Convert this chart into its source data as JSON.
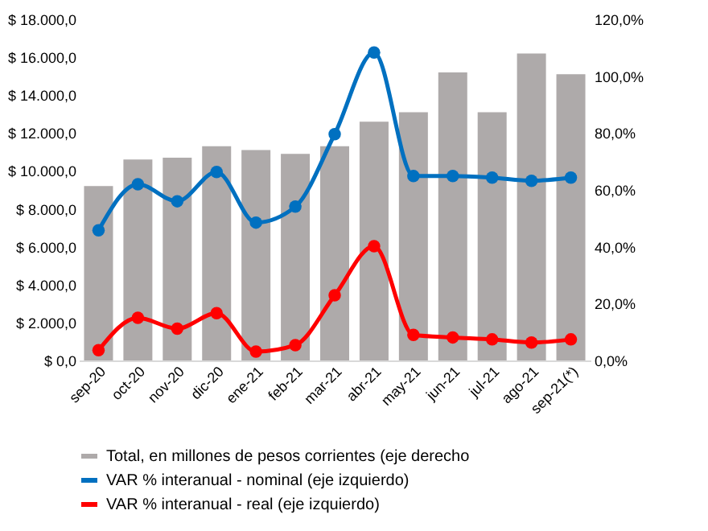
{
  "chart_data": {
    "type": "bar",
    "categories": [
      "sep-20",
      "oct-20",
      "nov-20",
      "dic-20",
      "ene-21",
      "feb-21",
      "mar-21",
      "abr-21",
      "may-21",
      "jun-21",
      "jul-21",
      "ago-21",
      "sep-21(*)"
    ],
    "series": [
      {
        "name": "Total, en millones de pesos corrientes (eje derecho",
        "type": "bar",
        "color": "#aeaaaa",
        "values": [
          9200,
          10600,
          10700,
          11300,
          11100,
          10900,
          11300,
          12600,
          13100,
          15200,
          13100,
          16200,
          15100
        ]
      },
      {
        "name": "VAR % interanual - nominal (eje izquierdo)",
        "type": "line",
        "axis": "y2",
        "color": "#0070c0",
        "values": [
          45.8,
          62.0,
          56.0,
          66.3,
          48.5,
          54.1,
          79.6,
          108.3,
          64.9,
          64.9,
          64.3,
          63.2,
          64.3
        ]
      },
      {
        "name": "VAR % interanual - real (eje izquierdo)",
        "type": "line",
        "axis": "y2",
        "color": "#ff0000",
        "values": [
          3.6,
          15.0,
          11.2,
          16.6,
          3.1,
          5.4,
          22.9,
          40.2,
          9.0,
          8.1,
          7.4,
          6.3,
          7.4
        ]
      }
    ],
    "ylim": [
      0,
      18000
    ],
    "yticks": [
      {
        "value": 0,
        "label": "$ 0,0"
      },
      {
        "value": 2000,
        "label": "$ 2.000,0"
      },
      {
        "value": 4000,
        "label": "$ 4.000,0"
      },
      {
        "value": 6000,
        "label": "$ 6.000,0"
      },
      {
        "value": 8000,
        "label": "$ 8.000,0"
      },
      {
        "value": 10000,
        "label": "$ 10.000,0"
      },
      {
        "value": 12000,
        "label": "$ 12.000,0"
      },
      {
        "value": 14000,
        "label": "$ 14.000,0"
      },
      {
        "value": 16000,
        "label": "$ 16.000,0"
      },
      {
        "value": 18000,
        "label": "$ 18.000,0"
      }
    ],
    "y2lim": [
      0,
      120
    ],
    "y2ticks": [
      {
        "value": 0,
        "label": "0,0%"
      },
      {
        "value": 20,
        "label": "20,0%"
      },
      {
        "value": 40,
        "label": "40,0%"
      },
      {
        "value": 60,
        "label": "60,0%"
      },
      {
        "value": 80,
        "label": "80,0%"
      },
      {
        "value": 100,
        "label": "100,0%"
      },
      {
        "value": 120,
        "label": "120,0%"
      }
    ],
    "marker": "circle",
    "grid": false,
    "legend": "bottom"
  }
}
